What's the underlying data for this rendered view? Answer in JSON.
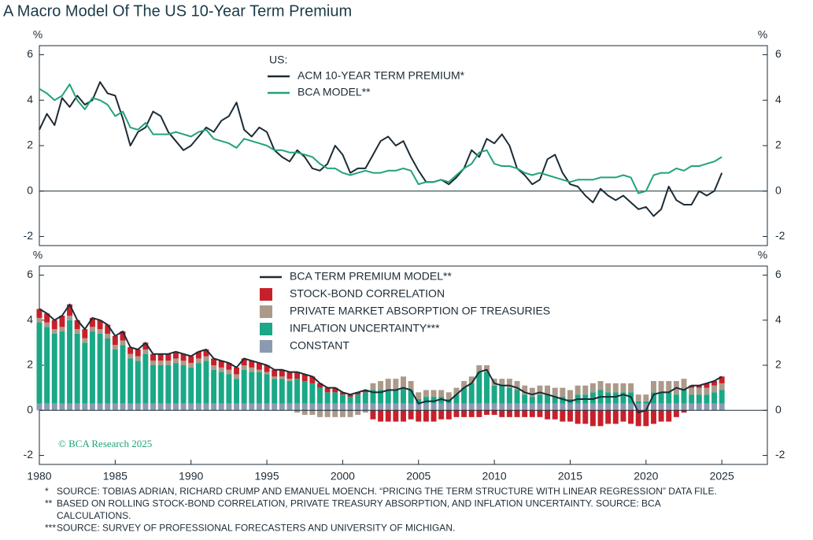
{
  "title": "A Macro Model Of The US 10-Year Term Premium",
  "copyright": "© BCA Research 2025",
  "footnotes": [
    {
      "marker": "*",
      "lines": [
        "SOURCE: TOBIAS ADRIAN, RICHARD CRUMP AND EMANUEL MOENCH. “PRICING THE TERM STRUCTURE WITH LINEAR REGRESSION” DATA FILE."
      ]
    },
    {
      "marker": "**",
      "lines": [
        "BASED ON ROLLING STOCK-BOND CORRELATION, PRIVATE TREASURY ABSORPTION, AND INFLATION UNCERTAINTY. SOURCE: BCA",
        "CALCULATIONS."
      ]
    },
    {
      "marker": "***",
      "lines": [
        "SOURCE: SURVEY OF PROFESSIONAL FORECASTERS AND UNIVERSITY OF MICHIGAN."
      ]
    }
  ],
  "chart_data": [
    {
      "type": "line",
      "y_label": "%",
      "legend_title": "US:",
      "xlim": [
        1980,
        2028
      ],
      "ylim": [
        -2.4,
        6.4
      ],
      "yticks": [
        -2,
        0,
        2,
        4,
        6
      ],
      "x": [
        1980,
        1980.5,
        1981,
        1981.5,
        1982,
        1982.5,
        1983,
        1983.5,
        1984,
        1984.5,
        1985,
        1985.5,
        1986,
        1986.5,
        1987,
        1987.5,
        1988,
        1988.5,
        1989,
        1989.5,
        1990,
        1990.5,
        1991,
        1991.5,
        1992,
        1992.5,
        1993,
        1993.5,
        1994,
        1994.5,
        1995,
        1995.5,
        1996,
        1996.5,
        1997,
        1997.5,
        1998,
        1998.5,
        1999,
        1999.5,
        2000,
        2000.5,
        2001,
        2001.5,
        2002,
        2002.5,
        2003,
        2003.5,
        2004,
        2004.5,
        2005,
        2005.5,
        2006,
        2006.5,
        2007,
        2007.5,
        2008,
        2008.5,
        2009,
        2009.5,
        2010,
        2010.5,
        2011,
        2011.5,
        2012,
        2012.5,
        2013,
        2013.5,
        2014,
        2014.5,
        2015,
        2015.5,
        2016,
        2016.5,
        2017,
        2017.5,
        2018,
        2018.5,
        2019,
        2019.5,
        2020,
        2020.5,
        2021,
        2021.5,
        2022,
        2022.5,
        2023,
        2023.5,
        2024,
        2024.5,
        2025
      ],
      "series": [
        {
          "name": "ACM 10-YEAR TERM PREMIUM*",
          "type": "line",
          "color": "#1c2b36",
          "values": [
            2.7,
            3.4,
            2.9,
            4.1,
            3.7,
            4.2,
            3.8,
            4.0,
            4.8,
            4.3,
            4.2,
            3.2,
            2.0,
            2.6,
            2.8,
            3.5,
            3.3,
            2.6,
            2.2,
            1.8,
            2.0,
            2.4,
            2.8,
            2.6,
            3.1,
            3.3,
            3.9,
            2.7,
            2.4,
            2.8,
            2.6,
            1.8,
            1.5,
            1.3,
            1.8,
            1.5,
            1.0,
            0.9,
            1.2,
            2.0,
            1.6,
            0.8,
            1.0,
            1.0,
            1.6,
            2.2,
            2.4,
            2.0,
            2.2,
            1.5,
            0.9,
            0.4,
            0.4,
            0.5,
            0.3,
            0.6,
            1.0,
            1.8,
            1.5,
            2.3,
            2.1,
            2.5,
            2.0,
            1.0,
            0.7,
            0.3,
            0.5,
            1.4,
            1.6,
            0.8,
            0.3,
            0.2,
            -0.2,
            -0.5,
            0.1,
            -0.2,
            -0.4,
            -0.2,
            -0.5,
            -0.8,
            -0.7,
            -1.1,
            -0.8,
            0.2,
            -0.4,
            -0.6,
            -0.6,
            0.0,
            -0.2,
            0.0,
            0.8
          ]
        },
        {
          "name": "BCA MODEL**",
          "type": "line",
          "color": "#21a27a",
          "values": [
            4.5,
            4.3,
            4.0,
            4.2,
            4.7,
            4.0,
            3.6,
            4.1,
            4.0,
            3.8,
            3.3,
            3.5,
            2.8,
            2.7,
            3.0,
            2.5,
            2.5,
            2.5,
            2.6,
            2.5,
            2.4,
            2.6,
            2.7,
            2.3,
            2.2,
            2.1,
            1.9,
            2.3,
            2.2,
            2.1,
            2.0,
            1.8,
            1.8,
            1.7,
            1.7,
            1.6,
            1.5,
            1.2,
            1.0,
            1.0,
            0.8,
            0.7,
            0.8,
            0.9,
            0.8,
            0.8,
            0.9,
            0.9,
            1.0,
            0.9,
            0.3,
            0.4,
            0.4,
            0.5,
            0.4,
            0.7,
            1.0,
            1.2,
            1.7,
            1.8,
            1.2,
            1.1,
            1.1,
            1.0,
            0.8,
            0.7,
            0.8,
            0.7,
            0.6,
            0.5,
            0.4,
            0.5,
            0.5,
            0.5,
            0.6,
            0.6,
            0.6,
            0.7,
            0.6,
            -0.1,
            0.0,
            0.7,
            0.8,
            0.8,
            1.0,
            0.9,
            1.1,
            1.1,
            1.2,
            1.3,
            1.5
          ]
        }
      ]
    },
    {
      "type": "bar",
      "y_label": "%",
      "xlim": [
        1980,
        2028
      ],
      "ylim": [
        -2.4,
        6.4
      ],
      "yticks": [
        -2,
        0,
        2,
        4,
        6
      ],
      "xticks": [
        1980,
        1985,
        1990,
        1995,
        2000,
        2005,
        2010,
        2015,
        2020,
        2025
      ],
      "x": [
        1980,
        1980.5,
        1981,
        1981.5,
        1982,
        1982.5,
        1983,
        1983.5,
        1984,
        1984.5,
        1985,
        1985.5,
        1986,
        1986.5,
        1987,
        1987.5,
        1988,
        1988.5,
        1989,
        1989.5,
        1990,
        1990.5,
        1991,
        1991.5,
        1992,
        1992.5,
        1993,
        1993.5,
        1994,
        1994.5,
        1995,
        1995.5,
        1996,
        1996.5,
        1997,
        1997.5,
        1998,
        1998.5,
        1999,
        1999.5,
        2000,
        2000.5,
        2001,
        2001.5,
        2002,
        2002.5,
        2003,
        2003.5,
        2004,
        2004.5,
        2005,
        2005.5,
        2006,
        2006.5,
        2007,
        2007.5,
        2008,
        2008.5,
        2009,
        2009.5,
        2010,
        2010.5,
        2011,
        2011.5,
        2012,
        2012.5,
        2013,
        2013.5,
        2014,
        2014.5,
        2015,
        2015.5,
        2016,
        2016.5,
        2017,
        2017.5,
        2018,
        2018.5,
        2019,
        2019.5,
        2020,
        2020.5,
        2021,
        2021.5,
        2022,
        2022.5,
        2023,
        2023.5,
        2024,
        2024.5,
        2025
      ],
      "series": [
        {
          "name": "BCA TERM PREMIUM MODEL**",
          "type": "line",
          "color": "#1c2b36",
          "values": [
            4.5,
            4.3,
            4.0,
            4.2,
            4.7,
            4.0,
            3.6,
            4.1,
            4.0,
            3.8,
            3.3,
            3.5,
            2.8,
            2.7,
            3.0,
            2.5,
            2.5,
            2.5,
            2.6,
            2.5,
            2.4,
            2.6,
            2.7,
            2.3,
            2.2,
            2.1,
            1.9,
            2.3,
            2.2,
            2.1,
            2.0,
            1.8,
            1.8,
            1.7,
            1.7,
            1.6,
            1.5,
            1.2,
            1.0,
            1.0,
            0.8,
            0.7,
            0.8,
            0.9,
            0.8,
            0.8,
            0.9,
            0.9,
            1.0,
            0.9,
            0.3,
            0.4,
            0.4,
            0.5,
            0.4,
            0.7,
            1.0,
            1.2,
            1.7,
            1.8,
            1.2,
            1.1,
            1.1,
            1.0,
            0.8,
            0.7,
            0.8,
            0.7,
            0.6,
            0.5,
            0.4,
            0.5,
            0.5,
            0.5,
            0.6,
            0.6,
            0.6,
            0.7,
            0.6,
            -0.1,
            0.0,
            0.7,
            0.8,
            0.8,
            1.0,
            0.9,
            1.1,
            1.1,
            1.2,
            1.3,
            1.5
          ]
        },
        {
          "name": "STOCK-BOND CORRELATION",
          "type": "bar",
          "color": "#c8202a",
          "values": [
            0.4,
            0.4,
            0.4,
            0.5,
            0.5,
            0.4,
            0.4,
            0.4,
            0.4,
            0.4,
            0.4,
            0.4,
            0.3,
            0.3,
            0.3,
            0.3,
            0.3,
            0.3,
            0.3,
            0.3,
            0.3,
            0.3,
            0.3,
            0.3,
            0.3,
            0.3,
            0.3,
            0.3,
            0.3,
            0.3,
            0.3,
            0.3,
            0.3,
            0.3,
            0.3,
            0.3,
            0.3,
            0.2,
            0.2,
            0.2,
            0.1,
            0.1,
            0.1,
            0.1,
            -0.4,
            -0.5,
            -0.5,
            -0.5,
            -0.5,
            -0.4,
            -0.5,
            -0.5,
            -0.5,
            -0.4,
            -0.4,
            -0.3,
            -0.3,
            -0.3,
            -0.3,
            -0.2,
            -0.2,
            -0.3,
            -0.3,
            -0.3,
            -0.3,
            -0.3,
            -0.3,
            -0.4,
            -0.4,
            -0.5,
            -0.5,
            -0.6,
            -0.6,
            -0.7,
            -0.7,
            -0.6,
            -0.6,
            -0.5,
            -0.6,
            -0.7,
            -0.7,
            -0.6,
            -0.5,
            -0.5,
            -0.3,
            -0.1,
            0.1,
            0.1,
            0.2,
            0.2,
            0.3
          ]
        },
        {
          "name": "PRIVATE MARKET ABSORPTION OF TREASURIES",
          "type": "bar",
          "color": "#ab9a8a",
          "values": [
            0.2,
            0.2,
            0.2,
            0.2,
            0.2,
            0.2,
            0.2,
            0.2,
            0.2,
            0.2,
            0.2,
            0.2,
            0.2,
            0.2,
            0.2,
            0.2,
            0.2,
            0.2,
            0.2,
            0.2,
            0.2,
            0.2,
            0.2,
            0.2,
            0.2,
            0.2,
            0.2,
            0.2,
            0.2,
            0.1,
            0.1,
            0.1,
            0.1,
            0.1,
            -0.1,
            -0.2,
            -0.2,
            -0.3,
            -0.3,
            -0.3,
            -0.3,
            -0.3,
            -0.2,
            -0.1,
            0.3,
            0.4,
            0.5,
            0.5,
            0.5,
            0.4,
            0.3,
            0.3,
            0.3,
            0.3,
            0.3,
            0.3,
            0.3,
            0.3,
            0.3,
            0.3,
            0.3,
            0.3,
            0.4,
            0.4,
            0.4,
            0.4,
            0.4,
            0.4,
            0.4,
            0.4,
            0.4,
            0.4,
            0.4,
            0.4,
            0.4,
            0.4,
            0.4,
            0.4,
            0.4,
            0.3,
            0.3,
            0.5,
            0.5,
            0.5,
            0.6,
            0.5,
            0.3,
            0.3,
            0.3,
            0.3,
            0.3
          ]
        },
        {
          "name": "INFLATION UNCERTAINTY***",
          "type": "bar",
          "color": "#1aa886",
          "values": [
            3.6,
            3.4,
            3.1,
            3.2,
            3.7,
            3.1,
            2.7,
            3.2,
            3.1,
            2.9,
            2.4,
            2.6,
            2.0,
            1.9,
            2.2,
            1.7,
            1.7,
            1.7,
            1.8,
            1.7,
            1.6,
            1.8,
            1.9,
            1.5,
            1.4,
            1.3,
            1.1,
            1.5,
            1.4,
            1.4,
            1.3,
            1.1,
            1.1,
            1.0,
            1.1,
            1.0,
            0.9,
            0.7,
            0.5,
            0.5,
            0.4,
            0.3,
            0.4,
            0.5,
            0.6,
            0.6,
            0.6,
            0.6,
            0.7,
            0.6,
            0.2,
            0.3,
            0.3,
            0.3,
            0.2,
            0.4,
            0.7,
            0.9,
            1.4,
            1.4,
            0.8,
            0.8,
            0.7,
            0.6,
            0.4,
            0.3,
            0.4,
            0.4,
            0.3,
            0.3,
            0.2,
            0.4,
            0.4,
            0.5,
            0.6,
            0.5,
            0.5,
            0.5,
            0.5,
            0.1,
            0.1,
            0.5,
            0.5,
            0.5,
            0.4,
            0.6,
            0.4,
            0.4,
            0.4,
            0.5,
            0.6
          ]
        },
        {
          "name": "CONSTANT",
          "type": "bar",
          "color": "#8a9bb0",
          "values": [
            0.3,
            0.3,
            0.3,
            0.3,
            0.3,
            0.3,
            0.3,
            0.3,
            0.3,
            0.3,
            0.3,
            0.3,
            0.3,
            0.3,
            0.3,
            0.3,
            0.3,
            0.3,
            0.3,
            0.3,
            0.3,
            0.3,
            0.3,
            0.3,
            0.3,
            0.3,
            0.3,
            0.3,
            0.3,
            0.3,
            0.3,
            0.3,
            0.3,
            0.3,
            0.3,
            0.3,
            0.3,
            0.3,
            0.3,
            0.3,
            0.3,
            0.3,
            0.3,
            0.3,
            0.3,
            0.3,
            0.3,
            0.3,
            0.3,
            0.3,
            0.3,
            0.3,
            0.3,
            0.3,
            0.3,
            0.3,
            0.3,
            0.3,
            0.3,
            0.3,
            0.3,
            0.3,
            0.3,
            0.3,
            0.3,
            0.3,
            0.3,
            0.3,
            0.3,
            0.3,
            0.3,
            0.3,
            0.3,
            0.3,
            0.3,
            0.3,
            0.3,
            0.3,
            0.3,
            0.3,
            0.3,
            0.3,
            0.3,
            0.3,
            0.3,
            0.3,
            0.3,
            0.3,
            0.3,
            0.3,
            0.3
          ]
        }
      ]
    }
  ]
}
